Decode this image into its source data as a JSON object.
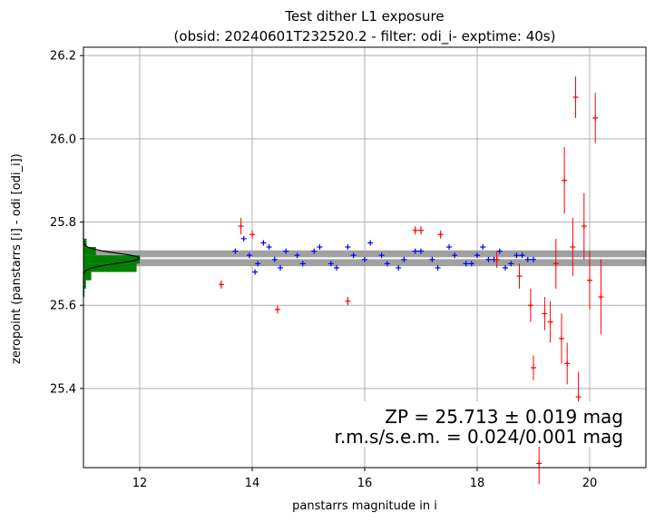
{
  "chart_data": {
    "type": "scatter",
    "title": [
      "Test dither L1 exposure",
      "(obsid: 20240601T232520.2 - filter: odi_i- exptime: 40s)"
    ],
    "xlabel": "panstarrs magnitude in i",
    "ylabel": "zeropoint (panstarrs [i] - odi [odi_i])",
    "xlim": [
      11.0,
      21.0
    ],
    "ylim": [
      25.21,
      26.22
    ],
    "xticks": [
      "12",
      "14",
      "16",
      "18",
      "20"
    ],
    "yticks": [
      "25.4",
      "25.6",
      "25.8",
      "26.0",
      "26.2"
    ],
    "grid": true,
    "colors": {
      "good": "#0000ff",
      "rejected": "#ff0000",
      "histogram": "#008000",
      "gauss": "#000000",
      "band": "#a0a0a0"
    },
    "zeropoint_band": {
      "center": 25.713,
      "half_width": 0.019
    },
    "annotation": [
      "ZP = 25.713 ± 0.019 mag",
      "r.m.s/s.e.m. = 0.024/0.001 mag"
    ],
    "series": [
      {
        "marker": "+",
        "color": "#0000ff",
        "x": [
          13.7,
          13.95,
          14.1,
          14.3,
          14.5,
          14.8,
          15.1,
          15.4,
          15.7,
          16.0,
          16.3,
          16.6,
          16.9,
          17.2,
          17.5,
          17.8,
          18.0,
          18.2,
          18.4,
          18.6,
          18.8,
          19.0,
          13.85,
          14.05,
          14.2,
          14.4,
          14.6,
          14.9,
          15.2,
          15.5,
          15.8,
          16.1,
          16.4,
          16.7,
          17.0,
          17.3,
          17.6,
          17.9,
          18.1,
          18.3,
          18.5,
          18.7,
          18.9
        ],
        "y": [
          25.73,
          25.72,
          25.7,
          25.74,
          25.69,
          25.72,
          25.73,
          25.7,
          25.74,
          25.71,
          25.72,
          25.69,
          25.73,
          25.71,
          25.74,
          25.7,
          25.72,
          25.71,
          25.73,
          25.7,
          25.72,
          25.71,
          25.76,
          25.68,
          25.75,
          25.71,
          25.73,
          25.7,
          25.74,
          25.69,
          25.72,
          25.75,
          25.7,
          25.71,
          25.73,
          25.69,
          25.72,
          25.7,
          25.74,
          25.71,
          25.69,
          25.72,
          25.71
        ]
      },
      {
        "marker": "+",
        "color": "#ff0000",
        "x": [
          13.45,
          13.8,
          14.0,
          14.45,
          15.7,
          16.9,
          17.0,
          17.35,
          18.35,
          18.75,
          18.95,
          19.0,
          19.1,
          19.2,
          19.3,
          19.4,
          19.5,
          19.6,
          19.7,
          19.8,
          19.9,
          20.0,
          20.1,
          20.2,
          19.55,
          19.75
        ],
        "y": [
          25.65,
          25.79,
          25.77,
          25.59,
          25.61,
          25.78,
          25.78,
          25.77,
          25.71,
          25.67,
          25.6,
          25.45,
          25.22,
          25.58,
          25.56,
          25.7,
          25.52,
          25.46,
          25.74,
          25.38,
          25.79,
          25.66,
          26.05,
          25.62,
          25.9,
          26.1
        ],
        "yerr": [
          0.01,
          0.02,
          0.01,
          0.01,
          0.01,
          0.01,
          0.01,
          0.01,
          0.02,
          0.03,
          0.04,
          0.03,
          0.05,
          0.04,
          0.05,
          0.06,
          0.06,
          0.05,
          0.07,
          0.06,
          0.08,
          0.07,
          0.06,
          0.09,
          0.08,
          0.05
        ]
      }
    ],
    "histogram": {
      "bins": [
        25.62,
        25.64,
        25.66,
        25.68,
        25.7,
        25.72,
        25.74,
        25.76
      ],
      "counts": [
        3,
        8,
        25,
        170,
        180,
        40,
        10,
        0
      ]
    }
  }
}
